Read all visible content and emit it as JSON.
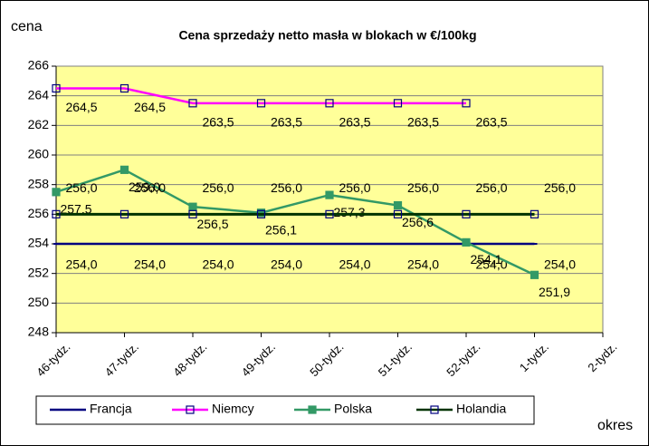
{
  "chart_data": {
    "type": "line",
    "title": "Cena sprzedaży netto masła w blokach w €/100kg",
    "y_label": "cena",
    "x_label": "okres",
    "categories": [
      "46-tydz.",
      "47-tydz.",
      "48-tydz.",
      "49-tydz.",
      "50-tydz.",
      "51-tydz.",
      "52-tydz.",
      "1-tydz.",
      "2-tydz."
    ],
    "series": [
      {
        "name": "Francja",
        "color": "#000080",
        "marker": "dash",
        "values": [
          254.0,
          254.0,
          254.0,
          254.0,
          254.0,
          254.0,
          254.0,
          254.0,
          null
        ],
        "value_labels": [
          "254,0",
          "254,0",
          "254,0",
          "254,0",
          "254,0",
          "254,0",
          "254,0",
          "254,0",
          null
        ]
      },
      {
        "name": "Niemcy",
        "color": "#FF00FF",
        "marker": "square-open",
        "values": [
          264.5,
          264.5,
          263.5,
          263.5,
          263.5,
          263.5,
          263.5,
          null,
          null
        ],
        "value_labels": [
          "264,5",
          "264,5",
          "263,5",
          "263,5",
          "263,5",
          "263,5",
          "263,5",
          null,
          null
        ]
      },
      {
        "name": "Polska",
        "color": "#339966",
        "marker": "square",
        "values": [
          257.5,
          259.0,
          256.5,
          256.1,
          257.3,
          256.6,
          254.1,
          251.9,
          null
        ],
        "value_labels": [
          "257,5",
          "259,0",
          "256,5",
          "256,1",
          "257,3",
          "256,6",
          "254,1",
          "251,9",
          null
        ]
      },
      {
        "name": "Holandia",
        "color": "#003300",
        "marker": "square-open",
        "values": [
          256.0,
          256.0,
          256.0,
          256.0,
          256.0,
          256.0,
          256.0,
          256.0,
          null
        ],
        "value_labels": [
          "256,0",
          "256,0",
          "256,0",
          "256,0",
          "256,0",
          "256,0",
          "256,0",
          "256,0",
          null
        ]
      }
    ],
    "ylim": [
      248,
      266
    ],
    "yticks": [
      248,
      250,
      252,
      254,
      256,
      258,
      260,
      262,
      264,
      266
    ],
    "grid": true,
    "legend": "bottom",
    "plot_background": "#FFFF99"
  }
}
